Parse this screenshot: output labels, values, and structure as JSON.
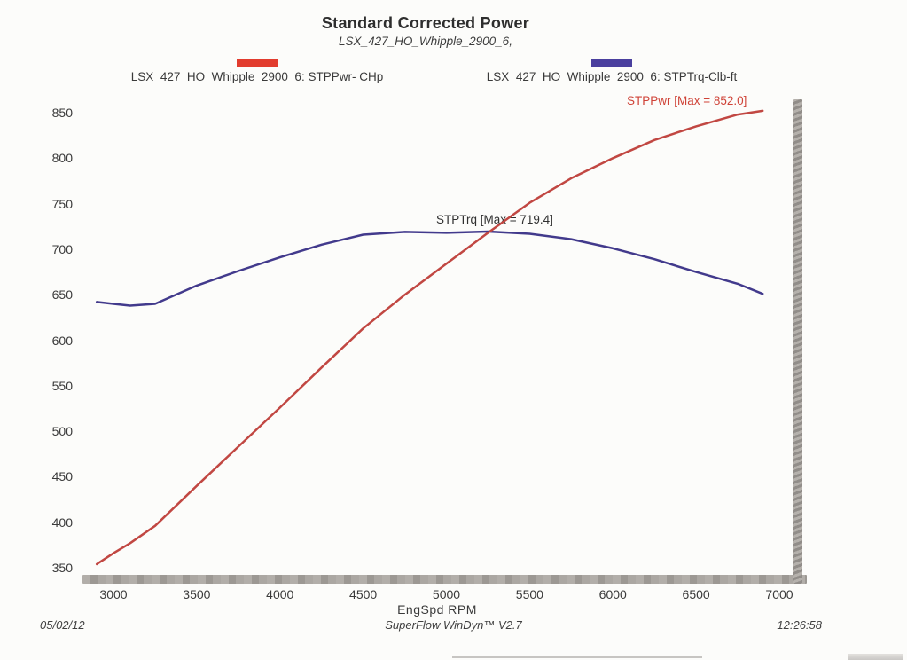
{
  "header": {
    "title": "Standard Corrected Power",
    "subtitle": "LSX_427_HO_Whipple_2900_6,"
  },
  "legend": [
    {
      "label": "LSX_427_HO_Whipple_2900_6: STPPwr- CHp",
      "color": "#e23c2e"
    },
    {
      "label": "LSX_427_HO_Whipple_2900_6: STPTrq-Clb-ft",
      "color": "#4a3f9e"
    }
  ],
  "annotations": {
    "power_max": "STPPwr [Max = 852.0]",
    "torque_max": "STPTrq [Max = 719.4]"
  },
  "chart_data": {
    "type": "line",
    "title": "Standard Corrected Power",
    "subtitle": "LSX_427_HO_Whipple_2900_6,",
    "xlabel": "EngSpd  RPM",
    "ylabel": "",
    "xlim": [
      3000,
      7000
    ],
    "ylim": [
      350,
      870
    ],
    "grid": false,
    "legend_position": "top",
    "x_ticks": [
      3000,
      3500,
      4000,
      4500,
      5000,
      5500,
      6000,
      6500,
      7000
    ],
    "y_ticks": [
      350,
      400,
      450,
      500,
      550,
      600,
      650,
      700,
      750,
      800,
      850
    ],
    "x": [
      2900,
      3000,
      3100,
      3250,
      3500,
      3750,
      4000,
      4250,
      4500,
      4750,
      5000,
      5250,
      5500,
      5750,
      6000,
      6250,
      6500,
      6750,
      6900
    ],
    "series": [
      {
        "name": "STPPwr- CHp",
        "color": "#c14742",
        "max": 852.0,
        "values": [
          354,
          366,
          377,
          396,
          440,
          483,
          526,
          570,
          613,
          650,
          684,
          718,
          751,
          778,
          800,
          820,
          835,
          848,
          852
        ]
      },
      {
        "name": "STPTrq-Clb-ft",
        "color": "#423a8c",
        "max": 719.4,
        "values": [
          642,
          640,
          638,
          640,
          660,
          676,
          691,
          705,
          716,
          719,
          718,
          719.4,
          717,
          711,
          701,
          689,
          675,
          662,
          651
        ]
      }
    ]
  },
  "footer": {
    "date": "05/02/12",
    "software": "SuperFlow WinDyn™ V2.7",
    "time": "12:26:58"
  }
}
